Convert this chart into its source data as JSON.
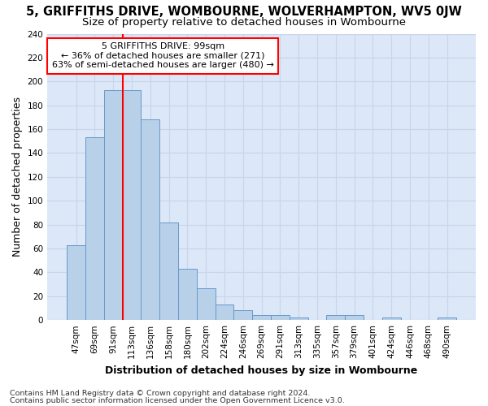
{
  "title_line1": "5, GRIFFITHS DRIVE, WOMBOURNE, WOLVERHAMPTON, WV5 0JW",
  "title_line2": "Size of property relative to detached houses in Wombourne",
  "xlabel": "Distribution of detached houses by size in Wombourne",
  "ylabel": "Number of detached properties",
  "footnote1": "Contains HM Land Registry data © Crown copyright and database right 2024.",
  "footnote2": "Contains public sector information licensed under the Open Government Licence v3.0.",
  "bar_labels": [
    "47sqm",
    "69sqm",
    "91sqm",
    "113sqm",
    "136sqm",
    "158sqm",
    "180sqm",
    "202sqm",
    "224sqm",
    "246sqm",
    "269sqm",
    "291sqm",
    "313sqm",
    "335sqm",
    "357sqm",
    "379sqm",
    "401sqm",
    "424sqm",
    "446sqm",
    "468sqm",
    "490sqm"
  ],
  "bar_values": [
    63,
    153,
    193,
    193,
    168,
    82,
    43,
    27,
    13,
    8,
    4,
    4,
    2,
    0,
    4,
    4,
    0,
    2,
    0,
    0,
    2
  ],
  "bar_color": "#b8d0e8",
  "bar_edge_color": "#6699cc",
  "grid_color": "#c8d4e8",
  "background_color": "#dce8f8",
  "fig_background": "#ffffff",
  "annotation_text_line1": "5 GRIFFITHS DRIVE: 99sqm",
  "annotation_text_line2": "← 36% of detached houses are smaller (271)",
  "annotation_text_line3": "63% of semi-detached houses are larger (480) →",
  "red_line_bar_index": 2,
  "ylim_max": 240,
  "yticks": [
    0,
    20,
    40,
    60,
    80,
    100,
    120,
    140,
    160,
    180,
    200,
    220,
    240
  ],
  "title_fontsize": 10.5,
  "subtitle_fontsize": 9.5,
  "axis_label_fontsize": 9,
  "tick_fontsize": 7.5,
  "annotation_fontsize": 8,
  "footnote_fontsize": 6.8
}
